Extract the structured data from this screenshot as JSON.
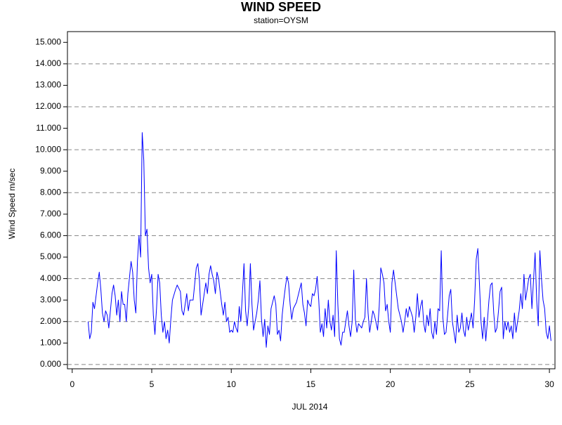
{
  "chart_data": {
    "type": "line",
    "title": "WIND SPEED",
    "subtitle": "station=OYSM",
    "x_label": "JUL 2014",
    "y_label": "Wind Speed m/sec",
    "xlim": [
      -0.3,
      30.35
    ],
    "ylim": [
      -0.2,
      15.5
    ],
    "xticks": [
      0,
      5,
      10,
      15,
      20,
      25,
      30
    ],
    "yticks": [
      {
        "value": 0,
        "label": "0.000"
      },
      {
        "value": 1,
        "label": "1.000"
      },
      {
        "value": 2,
        "label": "2.000"
      },
      {
        "value": 3,
        "label": "3.000"
      },
      {
        "value": 4,
        "label": "4.000"
      },
      {
        "value": 5,
        "label": "5.000"
      },
      {
        "value": 6,
        "label": "6.000"
      },
      {
        "value": 7,
        "label": "7.000"
      },
      {
        "value": 8,
        "label": "8.000"
      },
      {
        "value": 9,
        "label": "9.000"
      },
      {
        "value": 10,
        "label": "10.000"
      },
      {
        "value": 11,
        "label": "11.000"
      },
      {
        "value": 12,
        "label": "12.000"
      },
      {
        "value": 13,
        "label": "13.000"
      },
      {
        "value": 14,
        "label": "14.000"
      },
      {
        "value": 15,
        "label": "15.000"
      }
    ],
    "ygrid": [
      0,
      2,
      4,
      6,
      8,
      10,
      12,
      14
    ],
    "grid_color": "#888888",
    "series": [
      {
        "color": "#0000ff",
        "x": [
          1.0,
          1.1,
          1.2,
          1.3,
          1.4,
          1.6,
          1.7,
          1.8,
          1.9,
          2.0,
          2.1,
          2.2,
          2.3,
          2.5,
          2.6,
          2.7,
          2.8,
          2.9,
          3.0,
          3.1,
          3.2,
          3.3,
          3.4,
          3.5,
          3.7,
          3.8,
          3.9,
          4.0,
          4.1,
          4.2,
          4.3,
          4.4,
          4.5,
          4.6,
          4.7,
          4.8,
          4.9,
          5.0,
          5.1,
          5.2,
          5.3,
          5.4,
          5.5,
          5.6,
          5.7,
          5.8,
          5.9,
          6.0,
          6.1,
          6.2,
          6.3,
          6.5,
          6.6,
          6.8,
          6.9,
          7.0,
          7.1,
          7.2,
          7.3,
          7.4,
          7.6,
          7.8,
          7.9,
          8.0,
          8.1,
          8.2,
          8.4,
          8.5,
          8.6,
          8.7,
          8.8,
          8.9,
          9.0,
          9.1,
          9.2,
          9.3,
          9.4,
          9.5,
          9.6,
          9.7,
          9.8,
          9.9,
          10.0,
          10.1,
          10.2,
          10.3,
          10.4,
          10.5,
          10.6,
          10.7,
          10.8,
          10.9,
          11.0,
          11.1,
          11.2,
          11.3,
          11.4,
          11.5,
          11.6,
          11.7,
          11.8,
          11.9,
          12.0,
          12.1,
          12.2,
          12.3,
          12.4,
          12.5,
          12.7,
          12.8,
          12.9,
          13.0,
          13.1,
          13.2,
          13.3,
          13.4,
          13.5,
          13.6,
          13.7,
          13.8,
          13.9,
          14.1,
          14.3,
          14.4,
          14.5,
          14.6,
          14.7,
          14.8,
          14.9,
          15.0,
          15.1,
          15.2,
          15.3,
          15.4,
          15.5,
          15.6,
          15.7,
          15.8,
          15.9,
          16.0,
          16.1,
          16.2,
          16.3,
          16.4,
          16.5,
          16.6,
          16.7,
          16.8,
          16.9,
          17.0,
          17.1,
          17.2,
          17.3,
          17.4,
          17.5,
          17.6,
          17.7,
          17.8,
          17.9,
          18.0,
          18.2,
          18.3,
          18.4,
          18.5,
          18.6,
          18.7,
          18.8,
          18.9,
          19.0,
          19.2,
          19.3,
          19.4,
          19.5,
          19.6,
          19.7,
          19.8,
          19.9,
          20.0,
          20.1,
          20.2,
          20.3,
          20.5,
          20.7,
          20.8,
          20.9,
          21.0,
          21.1,
          21.2,
          21.4,
          21.5,
          21.6,
          21.7,
          21.8,
          21.9,
          22.0,
          22.1,
          22.2,
          22.3,
          22.4,
          22.5,
          22.6,
          22.7,
          22.8,
          22.9,
          23.0,
          23.1,
          23.2,
          23.3,
          23.4,
          23.5,
          23.6,
          23.7,
          23.8,
          23.9,
          24.0,
          24.1,
          24.2,
          24.3,
          24.4,
          24.5,
          24.6,
          24.7,
          24.8,
          24.9,
          25.0,
          25.1,
          25.2,
          25.3,
          25.4,
          25.5,
          25.6,
          25.7,
          25.8,
          25.9,
          26.0,
          26.1,
          26.2,
          26.3,
          26.4,
          26.5,
          26.6,
          26.7,
          26.8,
          26.9,
          27.0,
          27.1,
          27.2,
          27.3,
          27.4,
          27.5,
          27.6,
          27.7,
          27.8,
          27.9,
          28.0,
          28.1,
          28.2,
          28.3,
          28.4,
          28.5,
          28.6,
          28.7,
          28.8,
          28.9,
          29.0,
          29.1,
          29.2,
          29.3,
          29.4,
          29.5,
          29.6,
          29.7,
          29.8,
          29.9,
          30.0,
          30.1
        ],
        "values": [
          2.0,
          1.2,
          1.5,
          2.9,
          2.6,
          3.8,
          4.3,
          3.5,
          2.4,
          2.0,
          2.5,
          2.3,
          1.7,
          3.3,
          3.7,
          3.2,
          2.3,
          3.0,
          2.0,
          3.4,
          2.8,
          2.8,
          2.0,
          3.3,
          4.8,
          4.3,
          3.0,
          2.4,
          4.8,
          6.0,
          5.0,
          10.8,
          9.5,
          6.0,
          6.3,
          4.5,
          3.8,
          4.2,
          2.3,
          1.4,
          2.6,
          4.2,
          3.8,
          2.3,
          1.5,
          2.0,
          1.2,
          1.6,
          1.0,
          2.1,
          3.0,
          3.5,
          3.7,
          3.4,
          2.5,
          2.3,
          2.8,
          3.3,
          2.5,
          3.0,
          3.0,
          4.5,
          4.7,
          3.9,
          2.3,
          2.8,
          3.8,
          3.3,
          4.2,
          4.6,
          4.2,
          3.9,
          3.3,
          4.3,
          4.0,
          3.4,
          2.8,
          2.3,
          2.9,
          2.0,
          2.2,
          1.5,
          1.6,
          1.5,
          2.0,
          1.7,
          1.5,
          2.7,
          2.0,
          3.3,
          4.7,
          2.5,
          1.8,
          2.7,
          4.7,
          2.8,
          1.6,
          2.0,
          2.4,
          3.0,
          3.9,
          2.1,
          1.3,
          2.1,
          0.8,
          1.8,
          1.4,
          2.6,
          3.2,
          2.8,
          1.4,
          1.6,
          1.1,
          2.3,
          3.0,
          3.6,
          4.1,
          3.8,
          2.8,
          2.1,
          2.6,
          2.9,
          3.5,
          3.8,
          2.8,
          2.4,
          1.8,
          3.0,
          2.8,
          2.7,
          3.3,
          3.2,
          3.5,
          4.1,
          3.0,
          1.5,
          1.9,
          1.3,
          2.6,
          1.7,
          3.0,
          2.0,
          1.6,
          2.3,
          1.3,
          5.3,
          2.8,
          1.2,
          0.9,
          1.5,
          1.5,
          2.0,
          2.5,
          1.8,
          1.3,
          2.0,
          4.4,
          2.1,
          1.5,
          1.9,
          1.7,
          2.0,
          2.2,
          4.0,
          2.4,
          1.5,
          2.0,
          2.5,
          2.3,
          1.6,
          2.7,
          4.5,
          4.2,
          3.8,
          2.5,
          2.8,
          2.0,
          1.5,
          3.8,
          4.4,
          3.8,
          2.6,
          2.0,
          1.5,
          2.0,
          2.6,
          2.2,
          2.7,
          2.2,
          1.5,
          2.2,
          3.3,
          2.2,
          2.7,
          3.0,
          1.9,
          1.5,
          2.3,
          1.8,
          2.6,
          1.5,
          1.2,
          2.0,
          1.4,
          2.6,
          2.5,
          5.3,
          2.2,
          1.4,
          1.5,
          2.3,
          3.2,
          3.5,
          2.0,
          1.5,
          1.0,
          2.3,
          1.5,
          1.7,
          2.4,
          1.6,
          1.3,
          2.2,
          1.6,
          2.0,
          2.4,
          1.7,
          3.0,
          4.9,
          5.4,
          3.8,
          2.0,
          1.2,
          2.2,
          1.1,
          2.0,
          3.0,
          3.7,
          3.8,
          2.4,
          1.5,
          1.7,
          2.5,
          3.4,
          3.6,
          1.2,
          2.0,
          1.6,
          2.0,
          1.5,
          1.8,
          1.2,
          2.4,
          1.5,
          2.0,
          2.5,
          3.3,
          2.6,
          4.2,
          3.0,
          3.5,
          4.0,
          4.2,
          2.6,
          3.9,
          5.2,
          3.0,
          1.8,
          5.3,
          4.0,
          3.0,
          2.6,
          1.5,
          1.2,
          1.8,
          1.1
        ]
      }
    ]
  }
}
